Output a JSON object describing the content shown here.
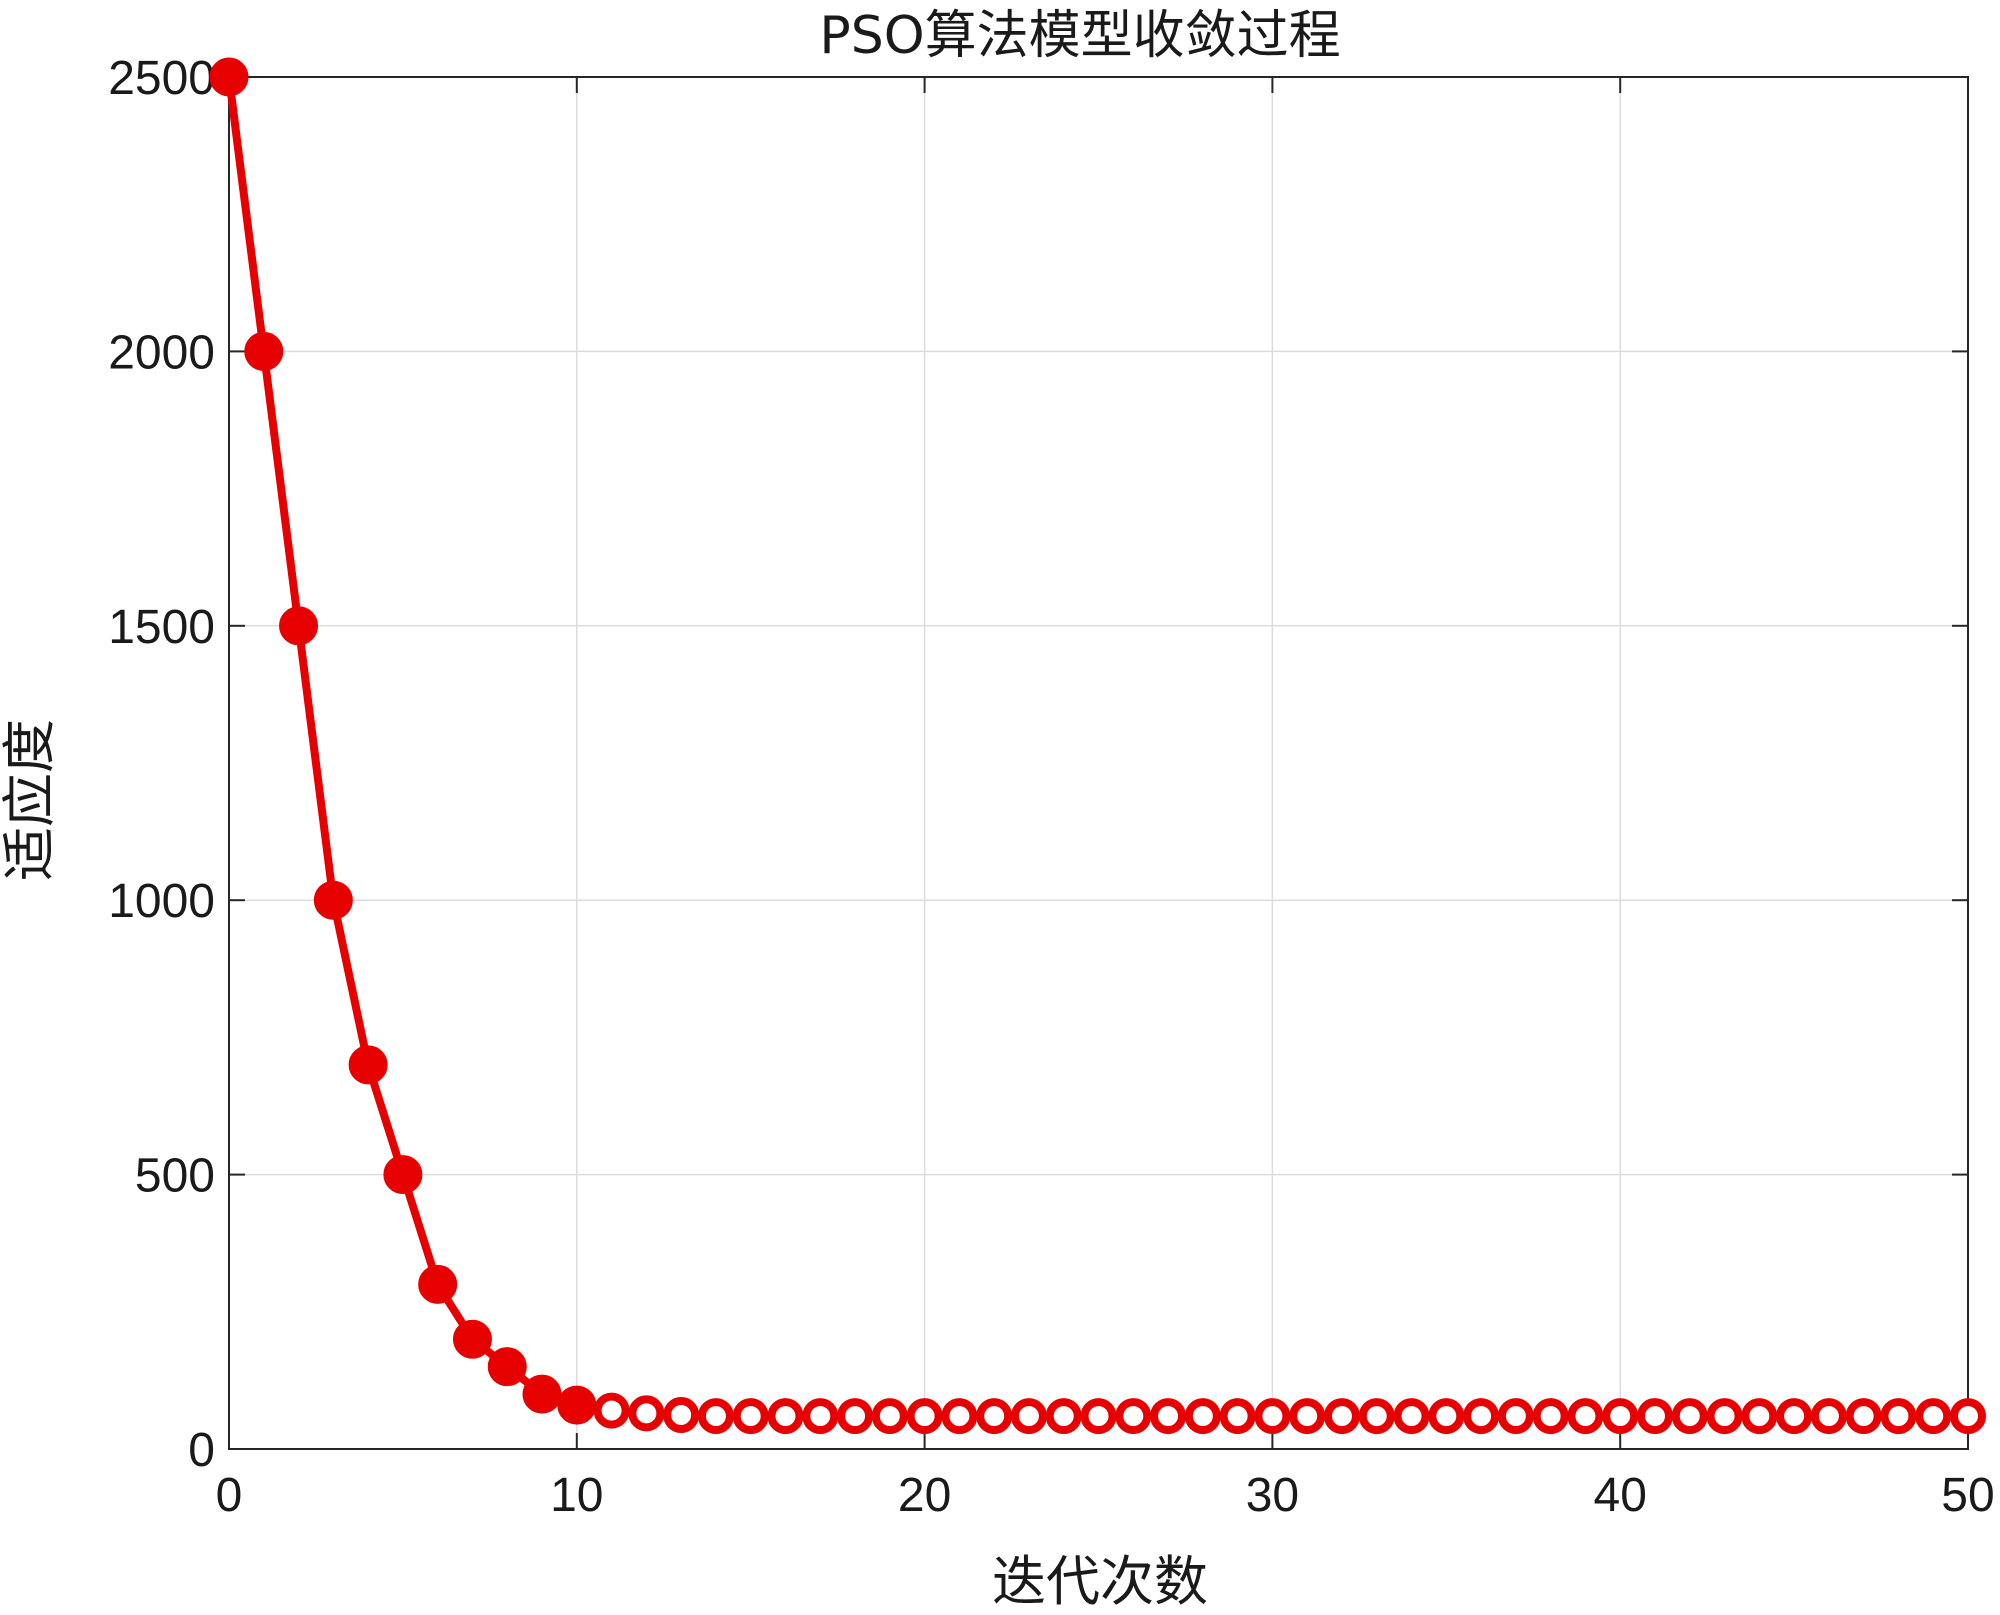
{
  "chart_data": {
    "type": "line",
    "title": "PSO算法模型收敛过程",
    "xlabel": "迭代次数",
    "ylabel": "适应度",
    "xlim": [
      0,
      50
    ],
    "ylim": [
      0,
      2500
    ],
    "xticks": [
      0,
      10,
      20,
      30,
      40,
      50
    ],
    "yticks": [
      0,
      500,
      1000,
      1500,
      2000,
      2500
    ],
    "grid": true,
    "box": true,
    "line_color": "#e60000",
    "filled_marker_until_x": 10,
    "x": [
      0,
      1,
      2,
      3,
      4,
      5,
      6,
      7,
      8,
      9,
      10,
      11,
      12,
      13,
      14,
      15,
      16,
      17,
      18,
      19,
      20,
      21,
      22,
      23,
      24,
      25,
      26,
      27,
      28,
      29,
      30,
      31,
      32,
      33,
      34,
      35,
      36,
      37,
      38,
      39,
      40,
      41,
      42,
      43,
      44,
      45,
      46,
      47,
      48,
      49,
      50
    ],
    "series": [
      {
        "values": [
          2500,
          2000,
          1500,
          1000,
          700,
          500,
          300,
          200,
          150,
          100,
          80,
          70,
          65,
          62,
          60,
          60,
          60,
          60,
          60,
          60,
          60,
          60,
          60,
          60,
          60,
          60,
          60,
          60,
          60,
          60,
          60,
          60,
          60,
          60,
          60,
          60,
          60,
          60,
          60,
          60,
          60,
          60,
          60,
          60,
          60,
          60,
          60,
          60,
          60,
          60,
          60
        ]
      }
    ]
  }
}
